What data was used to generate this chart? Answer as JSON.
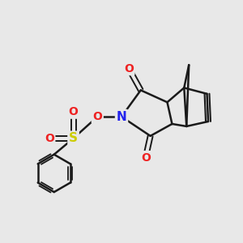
{
  "bg_color": "#e8e8e8",
  "bond_color": "#1a1a1a",
  "bond_width": 1.8,
  "atoms": {
    "N": {
      "color": "#2222ee",
      "fontsize": 11,
      "fontweight": "bold"
    },
    "O": {
      "color": "#ee2222",
      "fontsize": 10,
      "fontweight": "bold"
    },
    "S": {
      "color": "#cccc00",
      "fontsize": 11,
      "fontweight": "bold"
    }
  },
  "fig_width": 3.0,
  "fig_height": 3.0,
  "xlim": [
    0,
    10
  ],
  "ylim": [
    0,
    10
  ]
}
